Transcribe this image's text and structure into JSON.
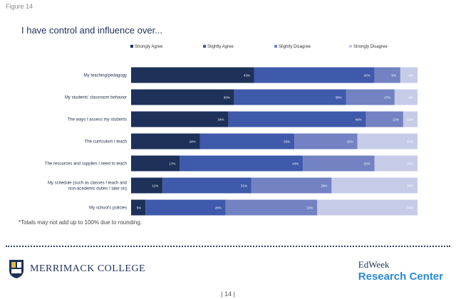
{
  "figure_label": "Figure 14",
  "chart_data": {
    "type": "bar",
    "orientation": "horizontal",
    "stacked": true,
    "title": "I have control and influence over...",
    "categories": [
      "My teaching/pedagogy",
      "My students' classroom behavior",
      "The ways I assess my students",
      "The curriculum I teach",
      "The resources and supplies I need to teach",
      "My schedule (such as classes I teach and non-academic duties I take on)",
      "My school's policies"
    ],
    "series": [
      {
        "name": "Strongly Agree",
        "color": "#1d3159",
        "values": [
          43,
          36,
          34,
          24,
          17,
          11,
          5
        ],
        "labels": [
          "43%",
          "36%",
          "34%",
          "24%",
          "17%",
          "11%",
          "5%"
        ]
      },
      {
        "name": "Slightly Agree",
        "color": "#3f59ab",
        "values": [
          42,
          39,
          48,
          33,
          43,
          31,
          28
        ],
        "labels": [
          "42%",
          "39%",
          "48%",
          "33%",
          "43%",
          "31%",
          "28%"
        ]
      },
      {
        "name": "Slightly Disagree",
        "color": "#7282c2",
        "values": [
          9,
          17,
          13,
          22,
          25,
          28,
          32
        ],
        "labels": [
          "9%",
          "17%",
          "13%",
          "22%",
          "25%",
          "28%",
          "32%"
        ]
      },
      {
        "name": "Strongly Disagree",
        "color": "#c6cce7",
        "values": [
          6,
          8,
          10,
          21,
          15,
          30,
          35
        ],
        "labels": [
          "6%",
          "8%",
          "10%",
          "21%",
          "15%",
          "30%",
          "35%"
        ]
      }
    ],
    "xlim": [
      0,
      100
    ],
    "legend_position": "top"
  },
  "footnote": "*Totals may not add up to 100% due to rounding.",
  "logos": {
    "left": "MERRIMACK COLLEGE",
    "right_top": "EdWeek",
    "right_bottom": "Research Center"
  },
  "page_number": "| 14 |"
}
